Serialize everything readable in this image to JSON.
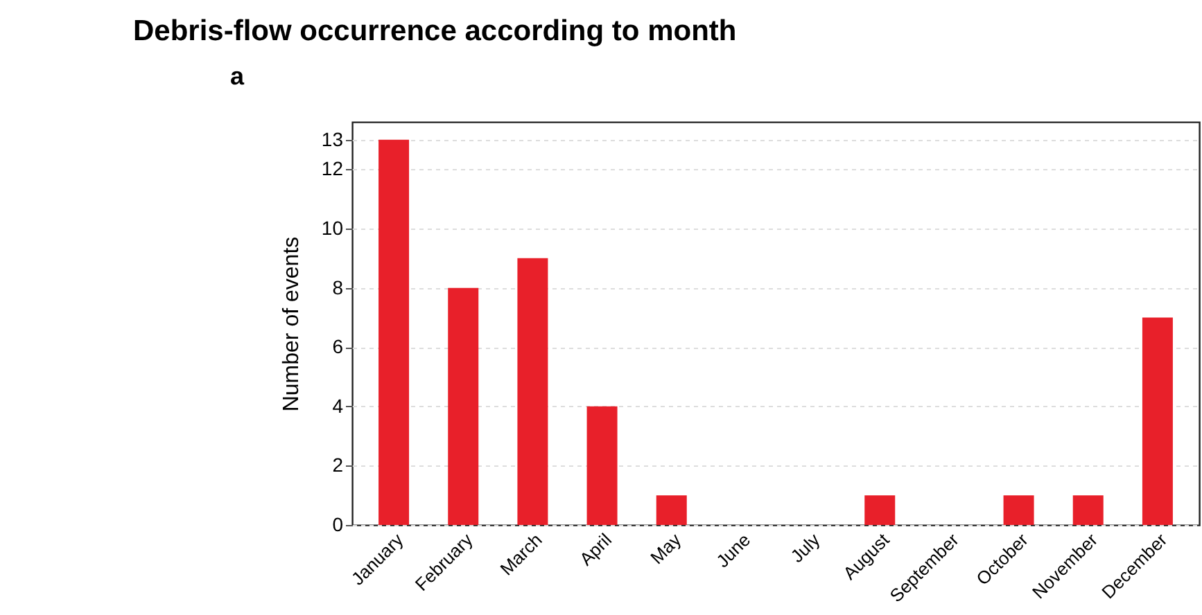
{
  "chart_data": {
    "type": "bar",
    "title": "Debris-flow occurrence according to month",
    "ylabel": "Number of events",
    "annotations": [
      "a"
    ],
    "categories": [
      "January",
      "February",
      "March",
      "April",
      "May",
      "June",
      "July",
      "August",
      "September",
      "October",
      "November",
      "December"
    ],
    "values": [
      13,
      8,
      9,
      4,
      1,
      0,
      0,
      1,
      0,
      1,
      1,
      7
    ],
    "color": "#e8202a",
    "ylim": [
      0,
      13.6
    ],
    "yticks": [
      0,
      2,
      4,
      6,
      8,
      10,
      12,
      13
    ],
    "grid": "y"
  }
}
